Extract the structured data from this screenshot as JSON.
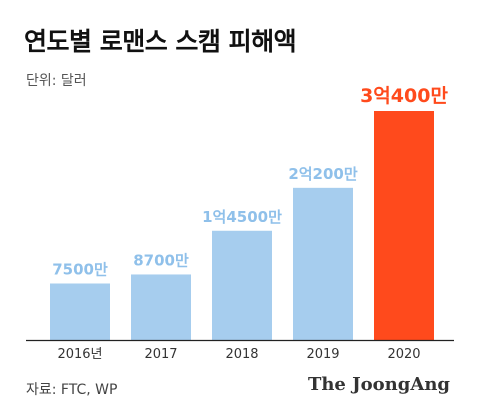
{
  "header": {
    "title": "연도별 로맨스 스캠 피해액",
    "unit": "단위: 달러"
  },
  "footer": {
    "source": "자료: FTC, WP",
    "brand": "The JoongAng"
  },
  "chart_data": {
    "type": "bar",
    "categories": [
      "2016년",
      "2017",
      "2018",
      "2019",
      "2020"
    ],
    "values": [
      75000000,
      87000000,
      145000000,
      202000000,
      304000000
    ],
    "data_labels": [
      "7500만",
      "8700만",
      "1억4500만",
      "2억200만",
      "3억400만"
    ],
    "ylim": [
      0,
      304000000
    ],
    "grid": false,
    "legend": "none",
    "colors": {
      "bar": "#a6cdee",
      "highlight": "#ff4a1c",
      "label": "#8fc0ea",
      "highlight_label": "#ff4a1c",
      "axis": "#222222",
      "tick_text": "#333333"
    },
    "highlight_index": 4
  }
}
